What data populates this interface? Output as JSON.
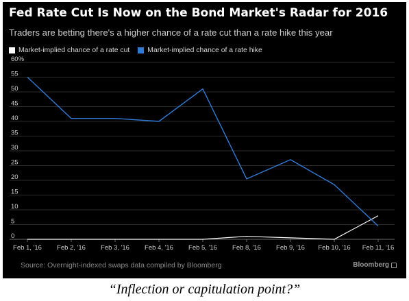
{
  "chart_data": {
    "type": "line",
    "title": "Fed Rate Cut Is Now on the Bond Market's Radar for 2016",
    "subtitle": "Traders are betting there's a higher chance of a rate cut than a rate hike this year",
    "categories": [
      "Feb 1, '16",
      "Feb 2, '16",
      "Feb 3, '16",
      "Feb 4, '16",
      "Feb 5, '16",
      "Feb 8, '16",
      "Feb 9, '16",
      "Feb 10, '16",
      "Feb 11, '16"
    ],
    "series": [
      {
        "name": "Market-implied chance of a rate cut",
        "color": "#ffffff",
        "values": [
          0,
          0,
          0,
          0,
          0,
          1,
          0.5,
          0,
          8
        ]
      },
      {
        "name": "Market-implied chance of a rate hike",
        "color": "#2f7bd8",
        "values": [
          55,
          41,
          41,
          40,
          51,
          20.5,
          27,
          18.5,
          4.5
        ]
      }
    ],
    "y_ticks": [
      "0",
      "5",
      "10",
      "15",
      "20",
      "25",
      "30",
      "35",
      "40",
      "45",
      "50",
      "55",
      "60%"
    ],
    "ylim": [
      0,
      60
    ],
    "grid": true,
    "legend_position": "top-left",
    "source": "Source: Overnight-indexed swaps data compiled by Bloomberg",
    "brand": "Bloomberg"
  },
  "caption": "“Inflection or capitulation point?”"
}
